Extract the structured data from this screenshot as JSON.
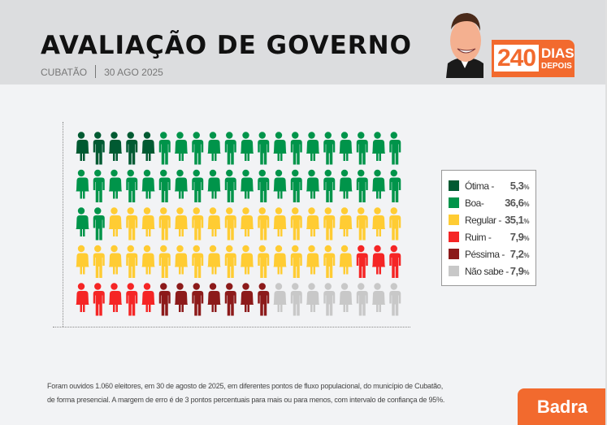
{
  "header": {
    "title": "AVALIAÇÃO DE GOVERNO",
    "city": "CUBATÃO",
    "date": "30 AGO 2025",
    "badge_number": "240",
    "badge_line1": "DIAS",
    "badge_line2": "DEPOIS"
  },
  "chart_data": {
    "type": "pictogram",
    "total_icons": 100,
    "columns": 20,
    "rows": 5,
    "legend_position": "right",
    "series": [
      {
        "name": "Ótima -",
        "value": "5,3",
        "icons": 5,
        "color": "#005a32"
      },
      {
        "name": "Boa-",
        "value": "36,6",
        "icons": 37,
        "color": "#00944a"
      },
      {
        "name": "Regular -",
        "value": "35,1",
        "icons": 35,
        "color": "#ffcc33"
      },
      {
        "name": "Ruim -",
        "value": "7,9",
        "icons": 8,
        "color": "#f52525"
      },
      {
        "name": "Péssima -",
        "value": "7,2",
        "icons": 7,
        "color": "#8c1a1a"
      },
      {
        "name": "Não sabe -",
        "value": "7,9",
        "icons": 8,
        "color": "#c8c8c8"
      }
    ],
    "unit": "%"
  },
  "footer": {
    "note_line1": "Foram ouvidos 1.060 eleitores, em 30 de agosto de 2025, em diferentes pontos de fluxo populacional, do município de Cubatão,",
    "note_line2": "de forma presencial. A margem de erro é de 3 pontos percentuais para mais ou para menos, com intervalo de confiança de 95%.",
    "brand": "Badra"
  }
}
